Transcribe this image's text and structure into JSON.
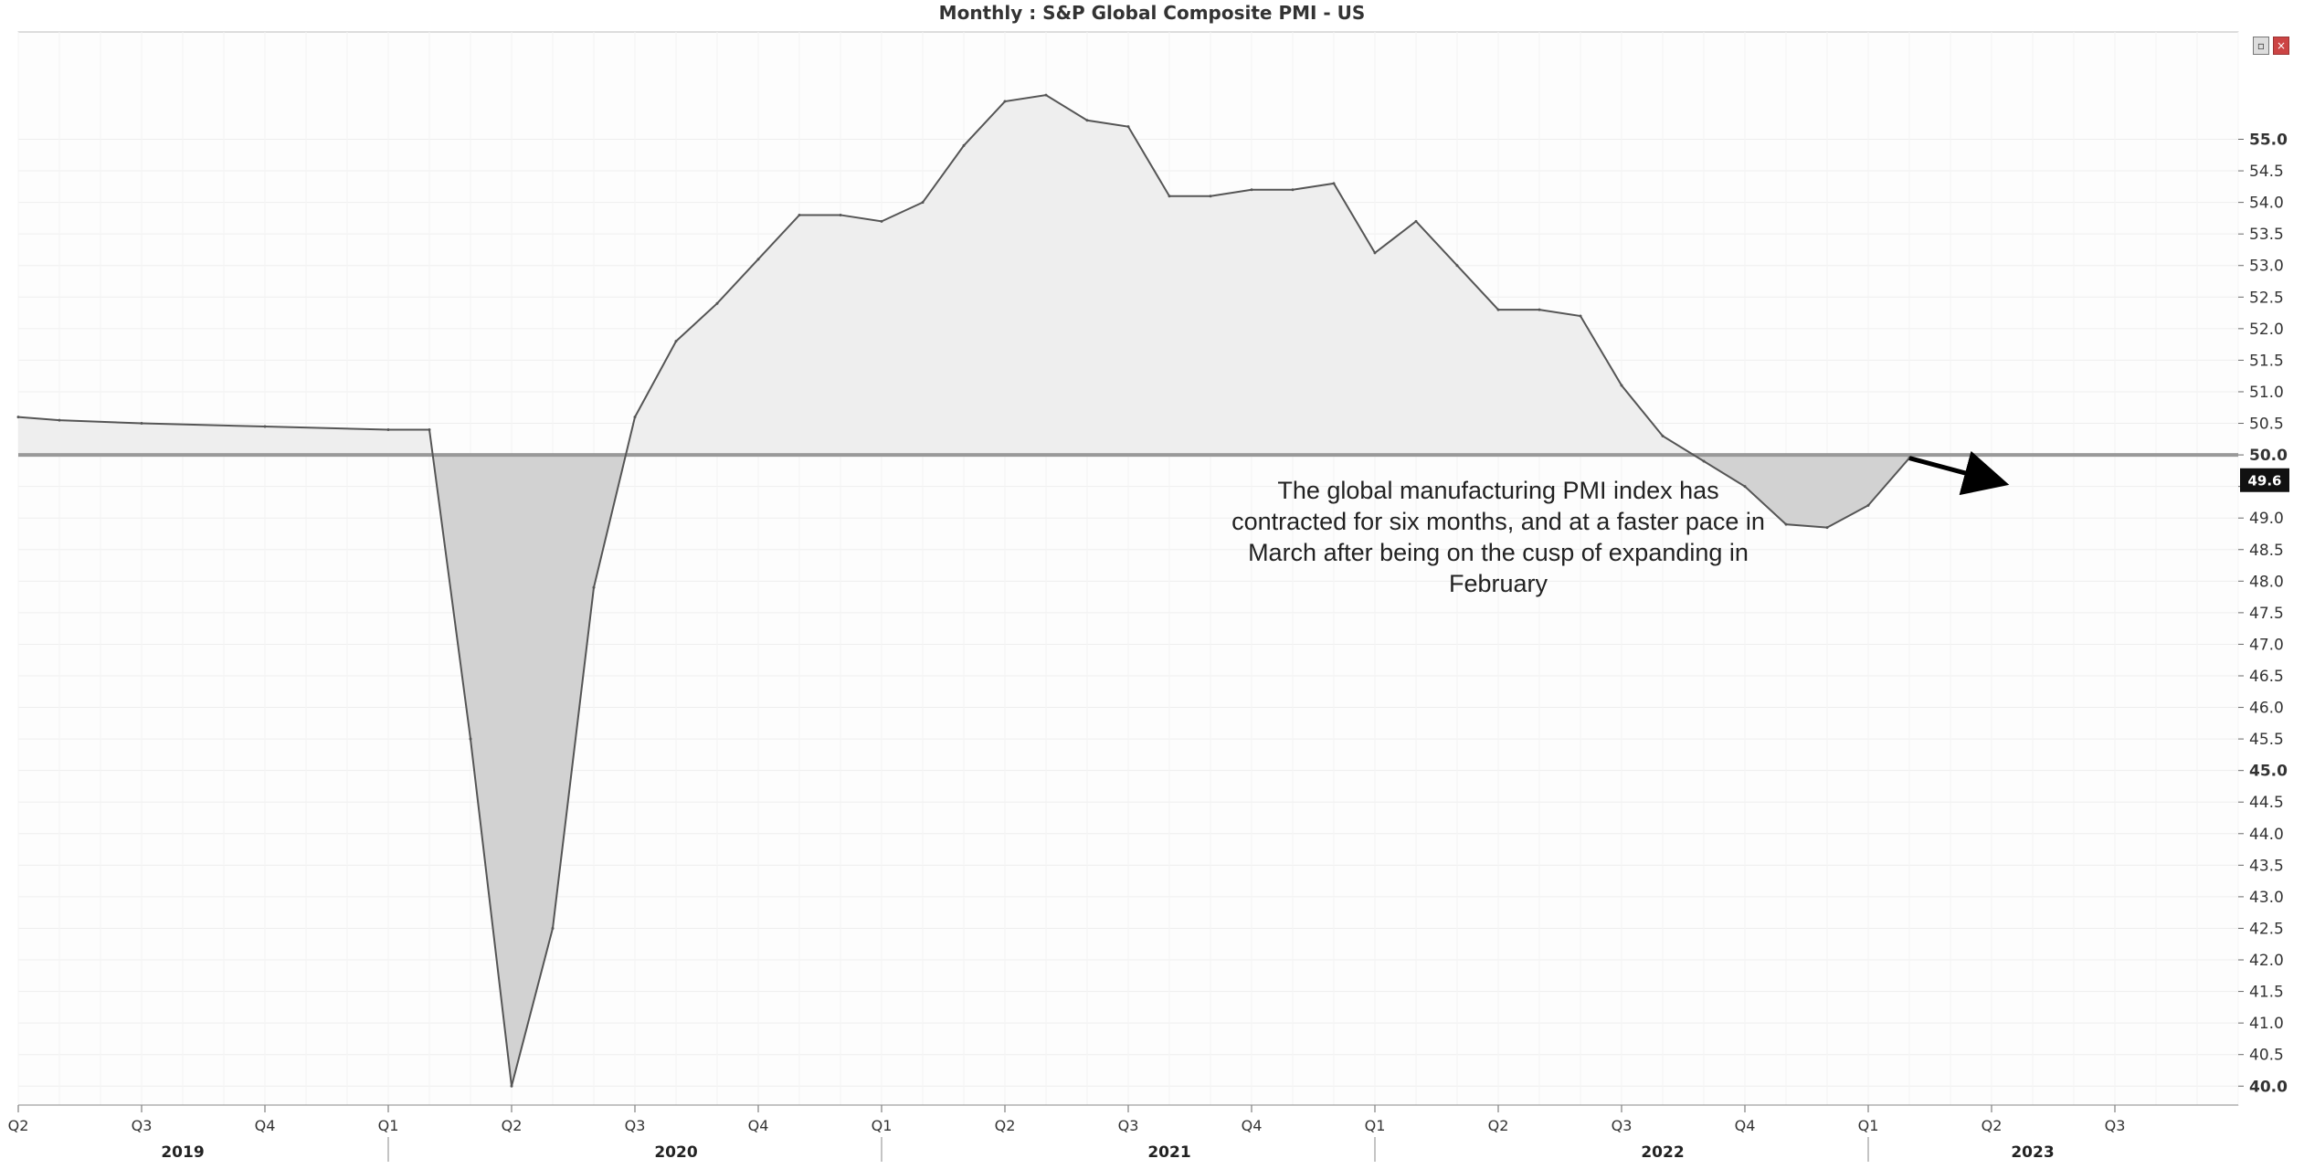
{
  "title": "Monthly : S&P Global Composite PMI - US",
  "annotation": "The global manufacturing PMI index has contracted for six months, and at a faster pace in March after being on the cusp of expanding in February",
  "colors": {
    "line": "#555555",
    "fill_above": "#eeeeee",
    "fill_below": "#d2d2d2",
    "baseline": "#999999",
    "grid": "#eeeeee",
    "arrow": "#000000",
    "last_label_bg": "#111111"
  },
  "icons": [
    "restore-icon",
    "close-icon"
  ],
  "chart_data": {
    "type": "area",
    "title": "Monthly : S&P Global Composite PMI - US",
    "baseline": 50.0,
    "ylim": [
      39.7,
      56.7
    ],
    "y_ticks": [
      "40.0",
      "40.5",
      "41.0",
      "41.5",
      "42.0",
      "42.5",
      "43.0",
      "43.5",
      "44.0",
      "44.5",
      "45.0",
      "45.5",
      "46.0",
      "46.5",
      "47.0",
      "47.5",
      "48.0",
      "48.5",
      "49.0",
      "49.5",
      "50.0",
      "50.5",
      "51.0",
      "51.5",
      "52.0",
      "52.5",
      "53.0",
      "53.5",
      "54.0",
      "54.5",
      "55.0"
    ],
    "y_ticks_bold": [
      "40.0",
      "45.0",
      "50.0",
      "55.0"
    ],
    "last_value_label": "49.6",
    "x_axis": {
      "quarter_ticks": [
        {
          "label": "Q2",
          "month": "2019-04"
        },
        {
          "label": "Q3",
          "month": "2019-07"
        },
        {
          "label": "Q4",
          "month": "2019-10"
        },
        {
          "label": "Q1",
          "month": "2020-01"
        },
        {
          "label": "Q2",
          "month": "2020-04"
        },
        {
          "label": "Q3",
          "month": "2020-07"
        },
        {
          "label": "Q4",
          "month": "2020-10"
        },
        {
          "label": "Q1",
          "month": "2021-01"
        },
        {
          "label": "Q2",
          "month": "2021-04"
        },
        {
          "label": "Q3",
          "month": "2021-07"
        },
        {
          "label": "Q4",
          "month": "2021-10"
        },
        {
          "label": "Q1",
          "month": "2022-01"
        },
        {
          "label": "Q2",
          "month": "2022-04"
        },
        {
          "label": "Q3",
          "month": "2022-07"
        },
        {
          "label": "Q4",
          "month": "2022-10"
        },
        {
          "label": "Q1",
          "month": "2023-01"
        },
        {
          "label": "Q2",
          "month": "2023-04"
        },
        {
          "label": "Q3",
          "month": "2023-07"
        }
      ],
      "year_labels": [
        {
          "label": "2019",
          "month": "2019-08"
        },
        {
          "label": "2020",
          "month": "2020-08"
        },
        {
          "label": "2021",
          "month": "2021-08"
        },
        {
          "label": "2022",
          "month": "2022-08"
        },
        {
          "label": "2023",
          "month": "2023-05"
        }
      ],
      "year_separators": [
        "2020-01",
        "2021-01",
        "2022-01",
        "2023-01"
      ]
    },
    "series": [
      {
        "values": [
          {
            "x": "2019-04",
            "y": 50.6
          },
          {
            "x": "2019-05",
            "y": 50.55
          },
          {
            "x": "2019-07",
            "y": 50.5
          },
          {
            "x": "2019-10",
            "y": 50.45
          },
          {
            "x": "2020-01",
            "y": 50.4
          },
          {
            "x": "2020-02",
            "y": 50.4
          },
          {
            "x": "2020-03",
            "y": 45.5
          },
          {
            "x": "2020-04",
            "y": 40.0
          },
          {
            "x": "2020-05",
            "y": 42.5
          },
          {
            "x": "2020-06",
            "y": 47.9
          },
          {
            "x": "2020-07",
            "y": 50.6
          },
          {
            "x": "2020-08",
            "y": 51.8
          },
          {
            "x": "2020-09",
            "y": 52.4
          },
          {
            "x": "2020-10",
            "y": 53.1
          },
          {
            "x": "2020-11",
            "y": 53.8
          },
          {
            "x": "2020-12",
            "y": 53.8
          },
          {
            "x": "2021-01",
            "y": 53.7
          },
          {
            "x": "2021-02",
            "y": 54.0
          },
          {
            "x": "2021-03",
            "y": 54.9
          },
          {
            "x": "2021-04",
            "y": 55.6
          },
          {
            "x": "2021-05",
            "y": 55.7
          },
          {
            "x": "2021-06",
            "y": 55.3
          },
          {
            "x": "2021-07",
            "y": 55.2
          },
          {
            "x": "2021-08",
            "y": 54.1
          },
          {
            "x": "2021-09",
            "y": 54.1
          },
          {
            "x": "2021-10",
            "y": 54.2
          },
          {
            "x": "2021-11",
            "y": 54.2
          },
          {
            "x": "2021-12",
            "y": 54.3
          },
          {
            "x": "2022-01",
            "y": 53.2
          },
          {
            "x": "2022-02",
            "y": 53.7
          },
          {
            "x": "2022-03",
            "y": 53.0
          },
          {
            "x": "2022-04",
            "y": 52.3
          },
          {
            "x": "2022-05",
            "y": 52.3
          },
          {
            "x": "2022-06",
            "y": 52.2
          },
          {
            "x": "2022-07",
            "y": 51.1
          },
          {
            "x": "2022-08",
            "y": 50.3
          },
          {
            "x": "2022-09",
            "y": 49.9
          },
          {
            "x": "2022-10",
            "y": 49.5
          },
          {
            "x": "2022-11",
            "y": 48.9
          },
          {
            "x": "2022-12",
            "y": 48.85
          },
          {
            "x": "2023-01",
            "y": 49.2
          },
          {
            "x": "2023-02",
            "y": 49.95
          }
        ]
      }
    ],
    "trend_arrow": {
      "from": {
        "x": "2023-02",
        "y": 49.95
      },
      "to": {
        "x": "2023-04",
        "y": 49.6
      }
    }
  }
}
